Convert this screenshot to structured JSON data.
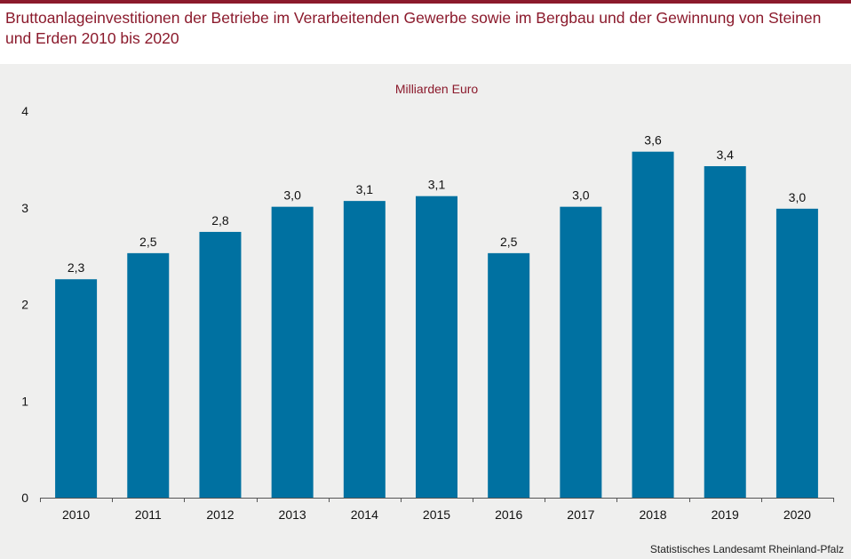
{
  "header": {
    "title": "Bruttoanlageinvestitionen der Betriebe im Verarbeitenden Gewerbe sowie im Bergbau und der Gewinnung von Steinen und Erden 2010 bis 2020"
  },
  "footer": {
    "source": "Statistisches Landesamt Rheinland-Pfalz"
  },
  "colors": {
    "accent": "#8b1a2c",
    "bar": "#0071a1",
    "panel": "#efefee"
  },
  "chart_data": {
    "type": "bar",
    "title": "",
    "unit_label": "Milliarden Euro",
    "xlabel": "",
    "ylabel": "",
    "categories": [
      "2010",
      "2011",
      "2012",
      "2013",
      "2014",
      "2015",
      "2016",
      "2017",
      "2018",
      "2019",
      "2020"
    ],
    "values": [
      2.26,
      2.53,
      2.75,
      3.01,
      3.07,
      3.12,
      2.53,
      3.01,
      3.58,
      3.43,
      2.99
    ],
    "value_labels": [
      "2,3",
      "2,5",
      "2,8",
      "3,0",
      "3,1",
      "3,1",
      "2,5",
      "3,0",
      "3,6",
      "3,4",
      "3,0"
    ],
    "y_ticks": [
      "0",
      "1",
      "2",
      "3",
      "4"
    ],
    "ylim": [
      0,
      4
    ],
    "grid": false,
    "legend": "none"
  }
}
